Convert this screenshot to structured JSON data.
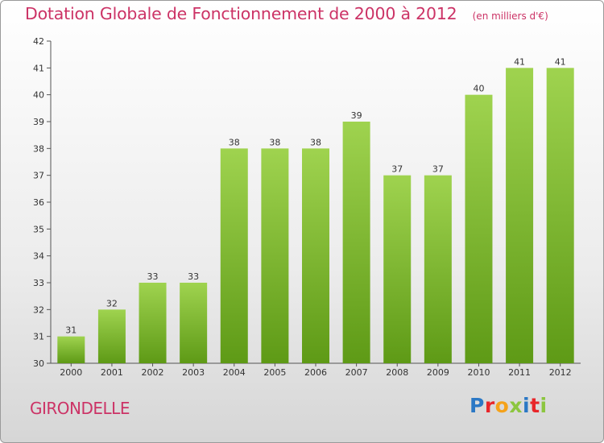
{
  "chart_data": {
    "type": "bar",
    "title": "Dotation Globale de Fonctionnement de 2000 à 2012",
    "subtitle": "(en milliers d'€)",
    "categories": [
      "2000",
      "2001",
      "2002",
      "2003",
      "2004",
      "2005",
      "2006",
      "2007",
      "2008",
      "2009",
      "2010",
      "2011",
      "2012"
    ],
    "values": [
      31,
      32,
      33,
      33,
      38,
      38,
      38,
      39,
      37,
      37,
      40,
      41,
      41
    ],
    "ylim": [
      30,
      42
    ],
    "yticks": [
      30,
      31,
      32,
      33,
      34,
      35,
      36,
      37,
      38,
      39,
      40,
      41,
      42
    ],
    "grid": false,
    "bar_color": "#8cc63f"
  },
  "footer": {
    "commune": "GIRONDELLE",
    "logo": "Proxiti"
  },
  "colors": {
    "title": "#cc3366",
    "logo_letters": [
      "#2b78c5",
      "#e8262a",
      "#f5a21a",
      "#8cc63f",
      "#2b78c5",
      "#e8262a",
      "#8cc63f"
    ]
  }
}
